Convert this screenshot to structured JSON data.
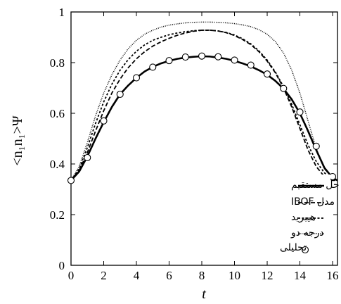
{
  "chart_data": {
    "type": "line",
    "xlabel": "t",
    "ylabel": "<n₁n₁>Ψ",
    "xlim": [
      0,
      16.3
    ],
    "ylim": [
      0,
      1
    ],
    "xticks": [
      "0",
      "2",
      "4",
      "6",
      "8",
      "10",
      "12",
      "14",
      "16"
    ],
    "yticks": [
      "0",
      "0.2",
      "0.4",
      "0.6",
      "0.8",
      "1"
    ],
    "grid": false,
    "legend_position": "bottom-right",
    "series": [
      {
        "name": "حل مستقیم",
        "style": "solid",
        "color": "#000000",
        "x": [
          0,
          0.5,
          1,
          1.5,
          2,
          2.5,
          3,
          3.5,
          4,
          4.5,
          5,
          5.5,
          6,
          6.5,
          7,
          7.5,
          8,
          8.5,
          9,
          9.5,
          10,
          10.5,
          11,
          11.5,
          12,
          12.5,
          13,
          13.5,
          14,
          14.5,
          15,
          15.5,
          16,
          16.3
        ],
        "y": [
          0.335,
          0.37,
          0.43,
          0.5,
          0.565,
          0.625,
          0.675,
          0.71,
          0.74,
          0.765,
          0.783,
          0.797,
          0.807,
          0.815,
          0.82,
          0.823,
          0.825,
          0.824,
          0.82,
          0.815,
          0.807,
          0.797,
          0.785,
          0.77,
          0.752,
          0.728,
          0.697,
          0.655,
          0.6,
          0.53,
          0.455,
          0.385,
          0.345,
          0.335
        ]
      },
      {
        "name": "مدل IBOF",
        "style": "dashed",
        "color": "#000000",
        "x": [
          0,
          0.5,
          1,
          1.5,
          2,
          2.5,
          3,
          3.5,
          4,
          4.5,
          5,
          5.5,
          6,
          6.5,
          7,
          7.5,
          8,
          8.5,
          9,
          9.5,
          10,
          10.5,
          11,
          11.5,
          12,
          12.5,
          13,
          13.5,
          14,
          14.5,
          15,
          15.5,
          16,
          16.3
        ],
        "y": [
          0.335,
          0.375,
          0.445,
          0.53,
          0.61,
          0.68,
          0.735,
          0.78,
          0.815,
          0.843,
          0.865,
          0.882,
          0.896,
          0.908,
          0.917,
          0.924,
          0.928,
          0.928,
          0.925,
          0.918,
          0.907,
          0.891,
          0.871,
          0.843,
          0.806,
          0.76,
          0.7,
          0.625,
          0.54,
          0.455,
          0.39,
          0.35,
          0.335,
          0.335
        ]
      },
      {
        "name": "هیبرید",
        "style": "short-dashed",
        "color": "#000000",
        "x": [
          0,
          0.5,
          1,
          1.5,
          2,
          2.5,
          3,
          3.5,
          4,
          4.5,
          5,
          5.5,
          6,
          6.5,
          7,
          7.5,
          8,
          8.5,
          9,
          9.5,
          10,
          10.5,
          11,
          11.5,
          12,
          12.5,
          13,
          13.5,
          14,
          14.5,
          15,
          15.5,
          16,
          16.3
        ],
        "y": [
          0.335,
          0.38,
          0.465,
          0.56,
          0.645,
          0.715,
          0.77,
          0.812,
          0.845,
          0.87,
          0.888,
          0.9,
          0.91,
          0.917,
          0.922,
          0.926,
          0.928,
          0.928,
          0.925,
          0.919,
          0.909,
          0.894,
          0.874,
          0.846,
          0.81,
          0.763,
          0.705,
          0.635,
          0.555,
          0.475,
          0.41,
          0.365,
          0.34,
          0.335
        ]
      },
      {
        "name": "درجه دو",
        "style": "dotted",
        "color": "#000000",
        "x": [
          0,
          0.5,
          1,
          1.5,
          2,
          2.5,
          3,
          3.5,
          4,
          4.5,
          5,
          5.5,
          6,
          6.5,
          7,
          7.5,
          8,
          8.5,
          9,
          9.5,
          10,
          10.5,
          11,
          11.5,
          12,
          12.5,
          13,
          13.5,
          14,
          14.5,
          15,
          15.5,
          16,
          16.3
        ],
        "y": [
          0.335,
          0.39,
          0.485,
          0.59,
          0.68,
          0.752,
          0.81,
          0.855,
          0.888,
          0.912,
          0.928,
          0.94,
          0.948,
          0.953,
          0.957,
          0.959,
          0.96,
          0.96,
          0.959,
          0.957,
          0.954,
          0.949,
          0.942,
          0.93,
          0.912,
          0.883,
          0.838,
          0.77,
          0.68,
          0.57,
          0.46,
          0.38,
          0.345,
          0.335
        ]
      },
      {
        "name": "تحلیلی",
        "style": "markers",
        "marker": "open-circle",
        "color": "#000000",
        "x": [
          0,
          1,
          2,
          3,
          4,
          5,
          6,
          7,
          8,
          9,
          10,
          11,
          12,
          13,
          14,
          15,
          16
        ],
        "y": [
          0.335,
          0.425,
          0.57,
          0.675,
          0.74,
          0.782,
          0.808,
          0.822,
          0.826,
          0.823,
          0.81,
          0.79,
          0.755,
          0.698,
          0.605,
          0.47,
          0.35
        ]
      }
    ]
  }
}
